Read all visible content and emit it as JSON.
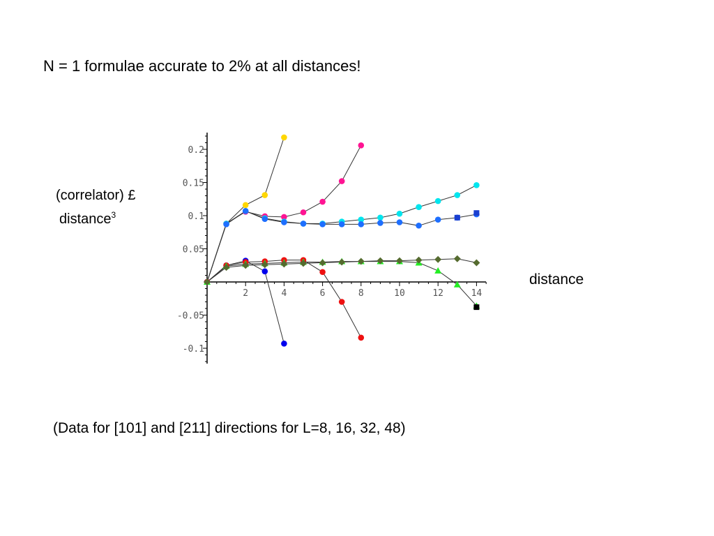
{
  "slide": {
    "title": "N = 1 formulae accurate to 2% at all distances!",
    "ylabel_line1": "(correlator) £",
    "ylabel_line2": "distance",
    "ylabel_sup": "3",
    "xlabel": "distance",
    "footnote": "(Data for [101] and [211] directions for L=8, 16, 32, 48)"
  },
  "chart_data": {
    "type": "scatter",
    "xlim": [
      0,
      14.5
    ],
    "ylim": [
      -0.12,
      0.225
    ],
    "x_ticks": [
      2,
      4,
      6,
      8,
      10,
      12,
      14
    ],
    "x_tick_labels": [
      "2",
      "4",
      "6",
      "8",
      "10",
      "12",
      "14"
    ],
    "y_ticks": [
      0.2,
      0.15,
      0.1,
      0.05,
      -0.05,
      -0.1
    ],
    "y_tick_labels": [
      "0.2",
      "0.15",
      "0.1",
      "0.05",
      "-0.05",
      "-0.1"
    ],
    "grid": false,
    "series": [
      {
        "color": "#ffd700",
        "marker": "circle",
        "line": true,
        "x": [
          0,
          1,
          2,
          3,
          4
        ],
        "y": [
          0,
          0.088,
          0.116,
          0.131,
          0.218
        ]
      },
      {
        "color": "#ff1493",
        "marker": "circle",
        "line": true,
        "x": [
          0,
          1,
          2,
          3,
          4,
          5,
          6,
          7,
          8
        ],
        "y": [
          0,
          0.088,
          0.106,
          0.099,
          0.098,
          0.105,
          0.121,
          0.152,
          0.206
        ]
      },
      {
        "color": "#00e5ee",
        "marker": "circle",
        "line": true,
        "x": [
          0,
          1,
          2,
          3,
          4,
          5,
          6,
          7,
          8,
          9,
          10,
          11,
          12,
          13,
          14
        ],
        "y": [
          0,
          0.088,
          0.107,
          0.096,
          0.091,
          0.088,
          0.088,
          0.091,
          0.094,
          0.097,
          0.103,
          0.113,
          0.122,
          0.131,
          0.146
        ]
      },
      {
        "color": "#1e6fff",
        "marker": "circle",
        "line": true,
        "x": [
          0,
          1,
          2,
          3,
          4,
          5,
          6,
          7,
          8,
          9,
          10,
          11,
          12,
          13,
          14
        ],
        "y": [
          0,
          0.087,
          0.107,
          0.095,
          0.09,
          0.088,
          0.087,
          0.087,
          0.087,
          0.089,
          0.09,
          0.085,
          0.094,
          0.097,
          0.102
        ]
      },
      {
        "color": "#1a3fd0",
        "marker": "square",
        "line": false,
        "x": [
          13,
          14
        ],
        "y": [
          0.097,
          0.104
        ]
      },
      {
        "color": "#0000ee",
        "marker": "circle",
        "line": true,
        "x": [
          0,
          1,
          2,
          3,
          4
        ],
        "y": [
          0,
          0.025,
          0.032,
          0.016,
          -0.093
        ]
      },
      {
        "color": "#ee1111",
        "marker": "circle",
        "line": true,
        "x": [
          0,
          1,
          2,
          3,
          4,
          5,
          6,
          7,
          8
        ],
        "y": [
          0,
          0.025,
          0.03,
          0.031,
          0.033,
          0.033,
          0.015,
          -0.03,
          -0.084
        ]
      },
      {
        "color": "#22ee22",
        "marker": "triangle",
        "line": true,
        "x": [
          0,
          1,
          2,
          3,
          4,
          5,
          6,
          7,
          8,
          9,
          10,
          11,
          12,
          13,
          14
        ],
        "y": [
          0,
          0.024,
          0.027,
          0.028,
          0.029,
          0.03,
          0.03,
          0.031,
          0.031,
          0.031,
          0.031,
          0.029,
          0.017,
          -0.004,
          -0.036
        ]
      },
      {
        "color": "#556b2f",
        "marker": "diamond",
        "line": true,
        "x": [
          0,
          1,
          2,
          3,
          4,
          5,
          6,
          7,
          8,
          9,
          10,
          11,
          12,
          13,
          14
        ],
        "y": [
          0,
          0.022,
          0.025,
          0.026,
          0.027,
          0.028,
          0.029,
          0.03,
          0.031,
          0.032,
          0.032,
          0.033,
          0.034,
          0.035,
          0.029
        ]
      },
      {
        "color": "#000000",
        "marker": "square",
        "line": false,
        "x": [
          14
        ],
        "y": [
          -0.038
        ]
      }
    ]
  }
}
